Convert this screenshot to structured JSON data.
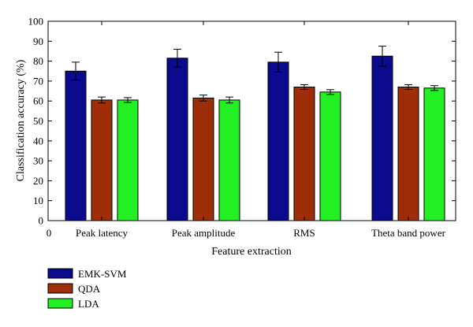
{
  "chart_data": {
    "type": "bar",
    "categories": [
      "Peak latency",
      "Peak amplitude",
      "RMS",
      "Theta band power"
    ],
    "series": [
      {
        "name": "EMK-SVM",
        "values": [
          75,
          81.5,
          79.5,
          82.5
        ],
        "errors": [
          4.5,
          4.5,
          5,
          5
        ],
        "color": "#0a0a8c"
      },
      {
        "name": "QDA",
        "values": [
          60.5,
          61.5,
          67,
          67
        ],
        "errors": [
          1.5,
          1.5,
          1.2,
          1.2
        ],
        "color": "#9e2e08"
      },
      {
        "name": "LDA",
        "values": [
          60.5,
          60.5,
          64.5,
          66.5
        ],
        "errors": [
          1.2,
          1.5,
          1.2,
          1.2
        ],
        "color": "#22f022"
      }
    ],
    "xlabel": "Feature extraction",
    "ylabel": "Classification accuracy (%)",
    "xzero_label": "0",
    "ylim": [
      0,
      100
    ],
    "yticks": [
      0,
      10,
      20,
      30,
      40,
      50,
      60,
      70,
      80,
      90,
      100
    ],
    "legend_position": "bottom-left",
    "grid": false
  }
}
